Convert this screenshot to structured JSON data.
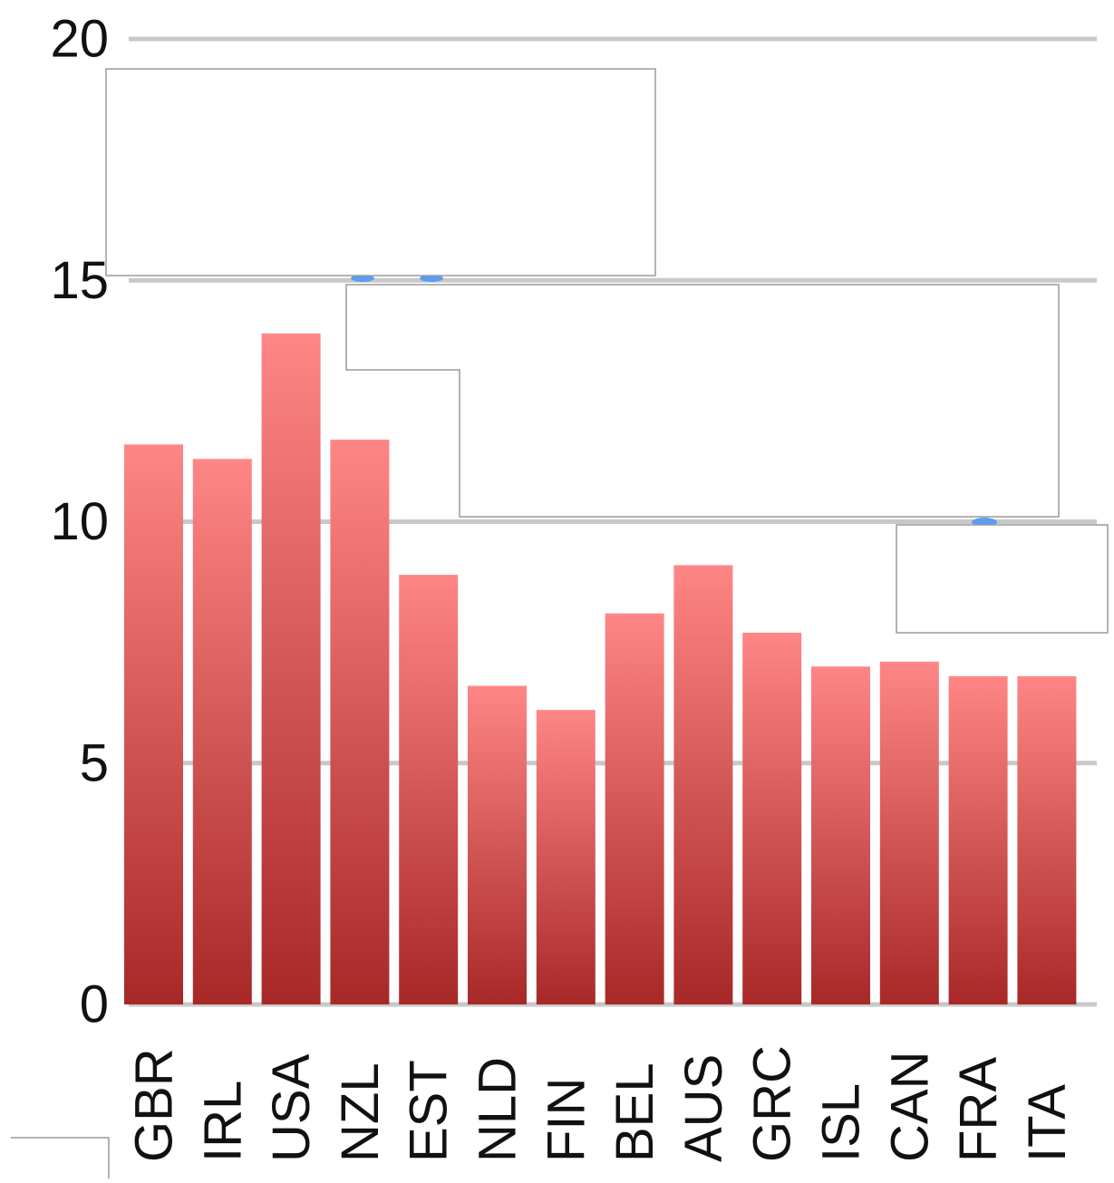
{
  "chart_data": {
    "type": "bar",
    "title": "",
    "xlabel": "",
    "ylabel": "",
    "ylim": [
      0,
      20
    ],
    "yticks": [
      0,
      5,
      10,
      15,
      20
    ],
    "grid": true,
    "categories": [
      "GBR",
      "IRL",
      "USA",
      "NZL",
      "EST",
      "NLD",
      "FIN",
      "BEL",
      "AUS",
      "GRC",
      "ISL",
      "CAN",
      "FRA",
      "ITA"
    ],
    "series": [
      {
        "values": [
          11.6,
          11.3,
          13.9,
          11.7,
          8.9,
          6.6,
          6.1,
          8.1,
          9.1,
          7.7,
          7.0,
          7.1,
          6.8,
          6.8
        ]
      }
    ]
  },
  "colors": {
    "bar_top": "#ff8686",
    "bar_bottom": "#a82828",
    "gridline": "#c8c8c8",
    "tick_text": "#111111",
    "overlay_border": "#9a9a9a",
    "marker": "#5b9df0"
  }
}
